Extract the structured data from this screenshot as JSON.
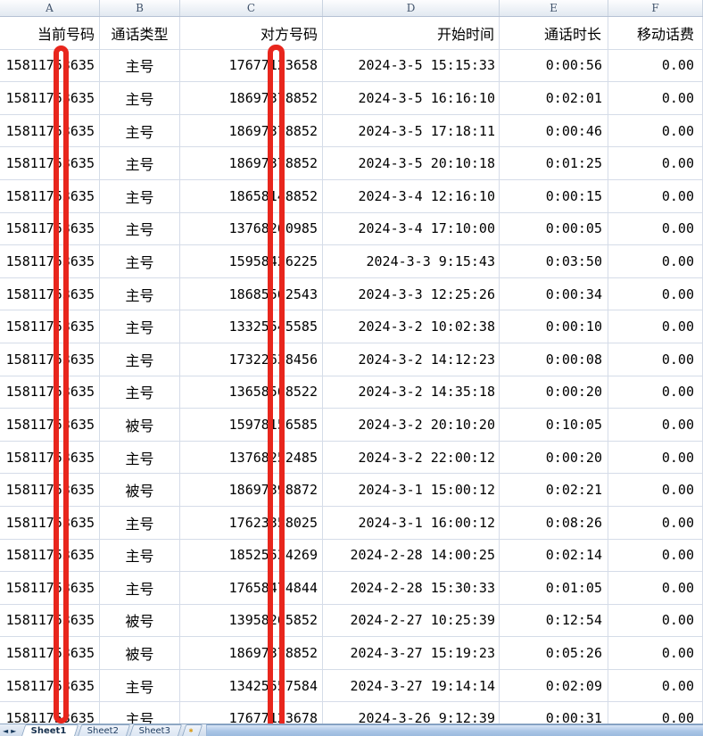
{
  "column_letters": [
    "A",
    "B",
    "C",
    "D",
    "E",
    "F"
  ],
  "header_row": {
    "current_number": "当前号码",
    "call_type": "通话类型",
    "peer_number": "对方号码",
    "start_time": "开始时间",
    "duration": "通话时长",
    "mobile_fee": "移动话费"
  },
  "rows": [
    {
      "current": "15811753635",
      "call_type": "主号",
      "peer": "17677123658",
      "start": "2024-3-5 15:15:33",
      "duration": "0:00:56",
      "fee": "0.00"
    },
    {
      "current": "15811753635",
      "call_type": "主号",
      "peer": "18697378852",
      "start": "2024-3-5 16:16:10",
      "duration": "0:02:01",
      "fee": "0.00"
    },
    {
      "current": "15811753635",
      "call_type": "主号",
      "peer": "18697378852",
      "start": "2024-3-5 17:18:11",
      "duration": "0:00:46",
      "fee": "0.00"
    },
    {
      "current": "15811753635",
      "call_type": "主号",
      "peer": "18697378852",
      "start": "2024-3-5 20:10:18",
      "duration": "0:01:25",
      "fee": "0.00"
    },
    {
      "current": "15811753635",
      "call_type": "主号",
      "peer": "18658148852",
      "start": "2024-3-4 12:16:10",
      "duration": "0:00:15",
      "fee": "0.00"
    },
    {
      "current": "15811753635",
      "call_type": "主号",
      "peer": "13768260985",
      "start": "2024-3-4 17:10:00",
      "duration": "0:00:05",
      "fee": "0.00"
    },
    {
      "current": "15811753635",
      "call_type": "主号",
      "peer": "15958426225",
      "start": "2024-3-3 9:15:43",
      "duration": "0:03:50",
      "fee": "0.00"
    },
    {
      "current": "15811753635",
      "call_type": "主号",
      "peer": "18685562543",
      "start": "2024-3-3 12:25:26",
      "duration": "0:00:34",
      "fee": "0.00"
    },
    {
      "current": "15811753635",
      "call_type": "主号",
      "peer": "13325545585",
      "start": "2024-3-2 10:02:38",
      "duration": "0:00:10",
      "fee": "0.00"
    },
    {
      "current": "15811753635",
      "call_type": "主号",
      "peer": "17322638456",
      "start": "2024-3-2 14:12:23",
      "duration": "0:00:08",
      "fee": "0.00"
    },
    {
      "current": "15811753635",
      "call_type": "主号",
      "peer": "13658568522",
      "start": "2024-3-2 14:35:18",
      "duration": "0:00:20",
      "fee": "0.00"
    },
    {
      "current": "15811753635",
      "call_type": "被号",
      "peer": "15978156585",
      "start": "2024-3-2 20:10:20",
      "duration": "0:10:05",
      "fee": "0.00"
    },
    {
      "current": "15811753635",
      "call_type": "主号",
      "peer": "13768252485",
      "start": "2024-3-2 22:00:12",
      "duration": "0:00:20",
      "fee": "0.00"
    },
    {
      "current": "15811753635",
      "call_type": "被号",
      "peer": "18697398872",
      "start": "2024-3-1 15:00:12",
      "duration": "0:02:21",
      "fee": "0.00"
    },
    {
      "current": "15811753635",
      "call_type": "主号",
      "peer": "17623358025",
      "start": "2024-3-1 16:00:12",
      "duration": "0:08:26",
      "fee": "0.00"
    },
    {
      "current": "15811753635",
      "call_type": "主号",
      "peer": "18525534269",
      "start": "2024-2-28 14:00:25",
      "duration": "0:02:14",
      "fee": "0.00"
    },
    {
      "current": "15811753635",
      "call_type": "主号",
      "peer": "17658474844",
      "start": "2024-2-28 15:30:33",
      "duration": "0:01:05",
      "fee": "0.00"
    },
    {
      "current": "15811753635",
      "call_type": "被号",
      "peer": "13958265852",
      "start": "2024-2-27 10:25:39",
      "duration": "0:12:54",
      "fee": "0.00"
    },
    {
      "current": "15811753635",
      "call_type": "被号",
      "peer": "18697378852",
      "start": "2024-3-27 15:19:23",
      "duration": "0:05:26",
      "fee": "0.00"
    },
    {
      "current": "15811753635",
      "call_type": "主号",
      "peer": "13425557584",
      "start": "2024-3-27 19:14:14",
      "duration": "0:02:09",
      "fee": "0.00"
    },
    {
      "current": "15811753635",
      "call_type": "主号",
      "peer": "17677123678",
      "start": "2024-3-26 9:12:39",
      "duration": "0:00:31",
      "fee": "0.00"
    }
  ],
  "annotations": {
    "redaction_color": "#e8261d",
    "redacted_areas": [
      "current-number-digit",
      "peer-number-digit"
    ]
  },
  "tabbar": {
    "nav_prev": "◄",
    "nav_next": "►",
    "tabs": [
      "Sheet1",
      "Sheet2",
      "Sheet3"
    ],
    "active_tab": "Sheet1",
    "insert_icon": "✱"
  }
}
